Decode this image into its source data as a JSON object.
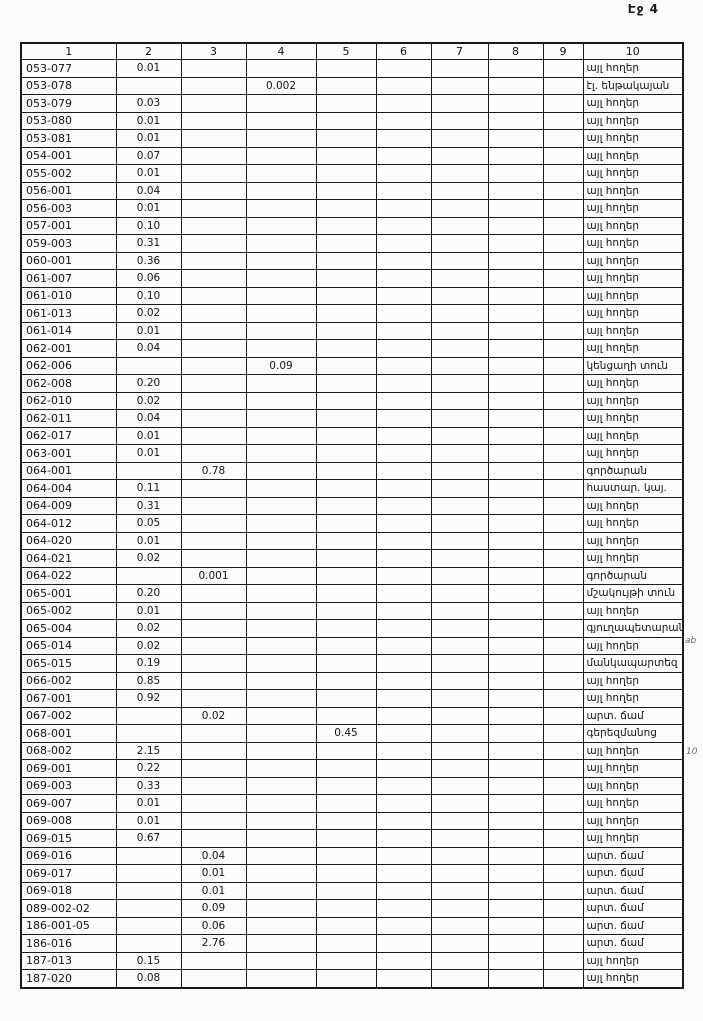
{
  "page": {
    "label": "Էջ 4"
  },
  "margin_notes": [
    {
      "text": "ab"
    },
    {
      "text": "10"
    }
  ],
  "table": {
    "headers": [
      "1",
      "2",
      "3",
      "4",
      "5",
      "6",
      "7",
      "8",
      "9",
      "10"
    ],
    "rows": [
      [
        "053-077",
        "0.01",
        "",
        "",
        "",
        "",
        "",
        "",
        "",
        "այլ հողեր"
      ],
      [
        "053-078",
        "",
        "",
        "0.002",
        "",
        "",
        "",
        "",
        "",
        "էլ. ենթակայան"
      ],
      [
        "053-079",
        "0.03",
        "",
        "",
        "",
        "",
        "",
        "",
        "",
        "այլ հողեր"
      ],
      [
        "053-080",
        "0.01",
        "",
        "",
        "",
        "",
        "",
        "",
        "",
        "այլ հողեր"
      ],
      [
        "053-081",
        "0.01",
        "",
        "",
        "",
        "",
        "",
        "",
        "",
        "այլ հողեր"
      ],
      [
        "054-001",
        "0.07",
        "",
        "",
        "",
        "",
        "",
        "",
        "",
        "այլ հողեր"
      ],
      [
        "055-002",
        "0.01",
        "",
        "",
        "",
        "",
        "",
        "",
        "",
        "այլ հողեր"
      ],
      [
        "056-001",
        "0.04",
        "",
        "",
        "",
        "",
        "",
        "",
        "",
        "այլ հողեր"
      ],
      [
        "056-003",
        "0.01",
        "",
        "",
        "",
        "",
        "",
        "",
        "",
        "այլ հողեր"
      ],
      [
        "057-001",
        "0.10",
        "",
        "",
        "",
        "",
        "",
        "",
        "",
        "այլ հողեր"
      ],
      [
        "059-003",
        "0.31",
        "",
        "",
        "",
        "",
        "",
        "",
        "",
        "այլ հողեր"
      ],
      [
        "060-001",
        "0.36",
        "",
        "",
        "",
        "",
        "",
        "",
        "",
        "այլ հողեր"
      ],
      [
        "061-007",
        "0.06",
        "",
        "",
        "",
        "",
        "",
        "",
        "",
        "այլ հողեր"
      ],
      [
        "061-010",
        "0.10",
        "",
        "",
        "",
        "",
        "",
        "",
        "",
        "այլ հողեր"
      ],
      [
        "061-013",
        "0.02",
        "",
        "",
        "",
        "",
        "",
        "",
        "",
        "այլ հողեր"
      ],
      [
        "061-014",
        "0.01",
        "",
        "",
        "",
        "",
        "",
        "",
        "",
        "այլ հողեր"
      ],
      [
        "062-001",
        "0.04",
        "",
        "",
        "",
        "",
        "",
        "",
        "",
        "այլ հողեր"
      ],
      [
        "062-006",
        "",
        "",
        "0.09",
        "",
        "",
        "",
        "",
        "",
        "կենցաղի տուն"
      ],
      [
        "062-008",
        "0.20",
        "",
        "",
        "",
        "",
        "",
        "",
        "",
        "այլ հողեր"
      ],
      [
        "062-010",
        "0.02",
        "",
        "",
        "",
        "",
        "",
        "",
        "",
        "այլ հողեր"
      ],
      [
        "062-011",
        "0.04",
        "",
        "",
        "",
        "",
        "",
        "",
        "",
        "այլ հողեր"
      ],
      [
        "062-017",
        "0.01",
        "",
        "",
        "",
        "",
        "",
        "",
        "",
        "այլ հողեր"
      ],
      [
        "063-001",
        "0.01",
        "",
        "",
        "",
        "",
        "",
        "",
        "",
        "այլ հողեր"
      ],
      [
        "064-001",
        "",
        "0.78",
        "",
        "",
        "",
        "",
        "",
        "",
        "գործարան"
      ],
      [
        "064-004",
        "0.11",
        "",
        "",
        "",
        "",
        "",
        "",
        "",
        "հաստար. կայ."
      ],
      [
        "064-009",
        "0.31",
        "",
        "",
        "",
        "",
        "",
        "",
        "",
        "այլ հողեր"
      ],
      [
        "064-012",
        "0.05",
        "",
        "",
        "",
        "",
        "",
        "",
        "",
        "այլ հողեր"
      ],
      [
        "064-020",
        "0.01",
        "",
        "",
        "",
        "",
        "",
        "",
        "",
        "այլ հողեր"
      ],
      [
        "064-021",
        "0.02",
        "",
        "",
        "",
        "",
        "",
        "",
        "",
        "այլ հողեր"
      ],
      [
        "064-022",
        "",
        "0.001",
        "",
        "",
        "",
        "",
        "",
        "",
        "գործարան"
      ],
      [
        "065-001",
        "0.20",
        "",
        "",
        "",
        "",
        "",
        "",
        "",
        "մշակույթի տուն"
      ],
      [
        "065-002",
        "0.01",
        "",
        "",
        "",
        "",
        "",
        "",
        "",
        "այլ հողեր"
      ],
      [
        "065-004",
        "0.02",
        "",
        "",
        "",
        "",
        "",
        "",
        "",
        "գյուղապետարան"
      ],
      [
        "065-014",
        "0.02",
        "",
        "",
        "",
        "",
        "",
        "",
        "",
        "այլ հողեր"
      ],
      [
        "065-015",
        "0.19",
        "",
        "",
        "",
        "",
        "",
        "",
        "",
        "մանկապարտեզ"
      ],
      [
        "066-002",
        "0.85",
        "",
        "",
        "",
        "",
        "",
        "",
        "",
        "այլ հողեր"
      ],
      [
        "067-001",
        "0.92",
        "",
        "",
        "",
        "",
        "",
        "",
        "",
        "այլ հողեր"
      ],
      [
        "067-002",
        "",
        "0.02",
        "",
        "",
        "",
        "",
        "",
        "",
        "արտ. ճամ"
      ],
      [
        "068-001",
        "",
        "",
        "",
        "0.45",
        "",
        "",
        "",
        "",
        "գերեզմանոց"
      ],
      [
        "068-002",
        "2.15",
        "",
        "",
        "",
        "",
        "",
        "",
        "",
        "այլ հողեր"
      ],
      [
        "069-001",
        "0.22",
        "",
        "",
        "",
        "",
        "",
        "",
        "",
        "այլ հողեր"
      ],
      [
        "069-003",
        "0.33",
        "",
        "",
        "",
        "",
        "",
        "",
        "",
        "այլ հողեր"
      ],
      [
        "069-007",
        "0.01",
        "",
        "",
        "",
        "",
        "",
        "",
        "",
        "այլ հողեր"
      ],
      [
        "069-008",
        "0.01",
        "",
        "",
        "",
        "",
        "",
        "",
        "",
        "այլ հողեր"
      ],
      [
        "069-015",
        "0.67",
        "",
        "",
        "",
        "",
        "",
        "",
        "",
        "այլ հողեր"
      ],
      [
        "069-016",
        "",
        "0.04",
        "",
        "",
        "",
        "",
        "",
        "",
        "արտ. ճամ"
      ],
      [
        "069-017",
        "",
        "0.01",
        "",
        "",
        "",
        "",
        "",
        "",
        "արտ. ճամ"
      ],
      [
        "069-018",
        "",
        "0.01",
        "",
        "",
        "",
        "",
        "",
        "",
        "արտ. ճամ"
      ],
      [
        "089-002-02",
        "",
        "0.09",
        "",
        "",
        "",
        "",
        "",
        "",
        "արտ. ճամ"
      ],
      [
        "186-001-05",
        "",
        "0.06",
        "",
        "",
        "",
        "",
        "",
        "",
        "արտ. ճամ"
      ],
      [
        "186-016",
        "",
        "2.76",
        "",
        "",
        "",
        "",
        "",
        "",
        "արտ. ճամ"
      ],
      [
        "187-013",
        "0.15",
        "",
        "",
        "",
        "",
        "",
        "",
        "",
        "այլ հողեր"
      ],
      [
        "187-020",
        "0.08",
        "",
        "",
        "",
        "",
        "",
        "",
        "",
        "այլ հողեր"
      ]
    ]
  }
}
